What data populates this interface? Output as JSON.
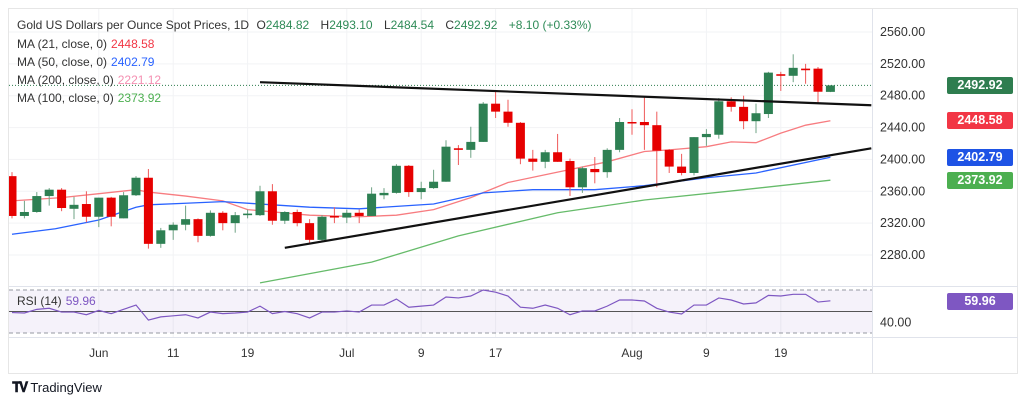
{
  "header": {
    "symbol": "Gold US Dollars per Ounce Spot Prices, 1D",
    "open_label": "O",
    "open": "2484.82",
    "high_label": "H",
    "high": "2493.10",
    "low_label": "L",
    "low": "2484.54",
    "close_label": "C",
    "close": "2492.92",
    "change": "+8.10 (+0.33%)"
  },
  "indicators": [
    {
      "label": "MA (21, close, 0)",
      "value": "2448.58",
      "color": "#f23645"
    },
    {
      "label": "MA (50, close, 0)",
      "value": "2402.79",
      "color": "#2962ff"
    },
    {
      "label": "MA (200, close, 0)",
      "value": "2221.12",
      "color": "#f48fb1"
    },
    {
      "label": "MA (100, close, 0)",
      "value": "2373.92",
      "color": "#4caf50"
    }
  ],
  "rsi": {
    "label": "RSI (14)",
    "value": "59.96",
    "color": "#7e57c2"
  },
  "price_tags": [
    {
      "value": "2492.92",
      "price": 2492.92,
      "color": "#2e7d4f"
    },
    {
      "value": "2448.58",
      "price": 2448.58,
      "color": "#f23645"
    },
    {
      "value": "2402.79",
      "price": 2402.79,
      "color": "#1e53e5"
    },
    {
      "value": "2373.92",
      "price": 2373.92,
      "color": "#4caf50"
    }
  ],
  "branding": {
    "logo_text": "TradingView"
  },
  "chart_data": {
    "type": "candlestick",
    "title": "Gold US Dollars per Ounce Spot Prices, 1D",
    "ylim": [
      2250,
      2585
    ],
    "y_ticks": [
      "2560.00",
      "2520.00",
      "2480.00",
      "2440.00",
      "2400.00",
      "2360.00",
      "2320.00",
      "2280.00"
    ],
    "x_labels": [
      {
        "label": "Jun",
        "index": 7
      },
      {
        "label": "11",
        "index": 13
      },
      {
        "label": "19",
        "index": 19
      },
      {
        "label": "Jul",
        "index": 27
      },
      {
        "label": "9",
        "index": 33
      },
      {
        "label": "17",
        "index": 39
      },
      {
        "label": "Aug",
        "index": 50
      },
      {
        "label": "9",
        "index": 56
      },
      {
        "label": "19",
        "index": 62
      }
    ],
    "candles_ohlc": [
      [
        2379,
        2384,
        2326,
        2329
      ],
      [
        2329,
        2348,
        2326,
        2334
      ],
      [
        2334,
        2359,
        2333,
        2354
      ],
      [
        2354,
        2364,
        2342,
        2362
      ],
      [
        2362,
        2364,
        2335,
        2339
      ],
      [
        2338,
        2353,
        2325,
        2343
      ],
      [
        2344,
        2360,
        2321,
        2328
      ],
      [
        2328,
        2352,
        2315,
        2352
      ],
      [
        2352,
        2353,
        2316,
        2328
      ],
      [
        2326,
        2359,
        2326,
        2355
      ],
      [
        2355,
        2379,
        2354,
        2377
      ],
      [
        2377,
        2388,
        2288,
        2294
      ],
      [
        2294,
        2314,
        2289,
        2311
      ],
      [
        2311,
        2321,
        2299,
        2318
      ],
      [
        2318,
        2342,
        2311,
        2325
      ],
      [
        2325,
        2326,
        2296,
        2304
      ],
      [
        2304,
        2336,
        2303,
        2333
      ],
      [
        2333,
        2335,
        2311,
        2320
      ],
      [
        2320,
        2334,
        2308,
        2330
      ],
      [
        2330,
        2337,
        2326,
        2332
      ],
      [
        2330,
        2367,
        2329,
        2360
      ],
      [
        2360,
        2369,
        2318,
        2323
      ],
      [
        2323,
        2335,
        2319,
        2334
      ],
      [
        2334,
        2337,
        2316,
        2320
      ],
      [
        2320,
        2325,
        2295,
        2299
      ],
      [
        2299,
        2330,
        2296,
        2328
      ],
      [
        2329,
        2340,
        2320,
        2327
      ],
      [
        2327,
        2337,
        2320,
        2333
      ],
      [
        2333,
        2337,
        2320,
        2329
      ],
      [
        2329,
        2365,
        2329,
        2357
      ],
      [
        2355,
        2364,
        2350,
        2358
      ],
      [
        2358,
        2394,
        2357,
        2392
      ],
      [
        2392,
        2393,
        2353,
        2359
      ],
      [
        2359,
        2372,
        2350,
        2364
      ],
      [
        2364,
        2387,
        2363,
        2372
      ],
      [
        2372,
        2424,
        2372,
        2416
      ],
      [
        2414,
        2418,
        2393,
        2412
      ],
      [
        2412,
        2441,
        2402,
        2422
      ],
      [
        2422,
        2472,
        2422,
        2470
      ],
      [
        2470,
        2485,
        2452,
        2460
      ],
      [
        2460,
        2475,
        2441,
        2446
      ],
      [
        2446,
        2447,
        2394,
        2401
      ],
      [
        2401,
        2412,
        2386,
        2397
      ],
      [
        2397,
        2412,
        2389,
        2409
      ],
      [
        2409,
        2432,
        2397,
        2397
      ],
      [
        2398,
        2401,
        2354,
        2365
      ],
      [
        2365,
        2391,
        2358,
        2389
      ],
      [
        2388,
        2403,
        2370,
        2384
      ],
      [
        2384,
        2414,
        2377,
        2412
      ],
      [
        2412,
        2452,
        2409,
        2447
      ],
      [
        2447,
        2463,
        2431,
        2446
      ],
      [
        2447,
        2478,
        2412,
        2443
      ],
      [
        2443,
        2460,
        2365,
        2411
      ],
      [
        2412,
        2413,
        2383,
        2391
      ],
      [
        2391,
        2407,
        2380,
        2383
      ],
      [
        2383,
        2428,
        2380,
        2428
      ],
      [
        2428,
        2438,
        2417,
        2432
      ],
      [
        2431,
        2477,
        2426,
        2473
      ],
      [
        2473,
        2478,
        2460,
        2466
      ],
      [
        2466,
        2480,
        2438,
        2448
      ],
      [
        2448,
        2470,
        2433,
        2458
      ],
      [
        2457,
        2510,
        2452,
        2509
      ],
      [
        2507,
        2510,
        2486,
        2505
      ],
      [
        2505,
        2532,
        2497,
        2515
      ],
      [
        2514,
        2520,
        2495,
        2512
      ],
      [
        2514,
        2516,
        2471,
        2485
      ],
      [
        2484.82,
        2493.1,
        2484.54,
        2492.92
      ]
    ],
    "series": [
      {
        "name": "MA 21",
        "color": "#f77c80",
        "points": [
          [
            0,
            2348
          ],
          [
            4,
            2352
          ],
          [
            7,
            2357
          ],
          [
            10,
            2362
          ],
          [
            11,
            2359
          ],
          [
            14,
            2354
          ],
          [
            17,
            2348
          ],
          [
            19,
            2337
          ],
          [
            24,
            2330
          ],
          [
            28,
            2328
          ],
          [
            31,
            2330
          ],
          [
            34,
            2337
          ],
          [
            37,
            2352
          ],
          [
            40,
            2371
          ],
          [
            44,
            2384
          ],
          [
            48,
            2397
          ],
          [
            51,
            2410
          ],
          [
            53,
            2412
          ],
          [
            56,
            2416
          ],
          [
            58,
            2422
          ],
          [
            60,
            2421
          ],
          [
            62,
            2433
          ],
          [
            64,
            2443
          ],
          [
            66,
            2448.58
          ]
        ]
      },
      {
        "name": "MA 50",
        "color": "#2962ff",
        "points": [
          [
            0,
            2306
          ],
          [
            3.5,
            2313
          ],
          [
            7,
            2324
          ],
          [
            10,
            2340
          ],
          [
            11,
            2343
          ],
          [
            14,
            2345
          ],
          [
            17,
            2347
          ],
          [
            21,
            2343
          ],
          [
            24,
            2340
          ],
          [
            28,
            2338
          ],
          [
            34,
            2344
          ],
          [
            38,
            2358
          ],
          [
            42,
            2362
          ],
          [
            47,
            2362
          ],
          [
            51,
            2367
          ],
          [
            56,
            2377
          ],
          [
            60,
            2383
          ],
          [
            66,
            2402.79
          ]
        ]
      },
      {
        "name": "MA 100",
        "color": "#66bb6a",
        "points": [
          [
            20,
            2245
          ],
          [
            29,
            2271
          ],
          [
            36,
            2304
          ],
          [
            44,
            2333
          ],
          [
            51,
            2349
          ],
          [
            59,
            2362
          ],
          [
            66,
            2373.92
          ]
        ]
      }
    ],
    "trendlines": [
      {
        "name": "upper-trendline",
        "points": [
          [
            20,
            2497
          ],
          [
            69.3,
            2468
          ]
        ]
      },
      {
        "name": "lower-trendline",
        "points": [
          [
            22,
            2289
          ],
          [
            69.3,
            2414
          ]
        ]
      }
    ],
    "rsi_panel": {
      "ylim": [
        30,
        70
      ],
      "levels": [
        70,
        50,
        30
      ],
      "tick_label": "40.00",
      "values": [
        49,
        48.6,
        52,
        53,
        49.5,
        49.5,
        47,
        51,
        48,
        52,
        56,
        42,
        45,
        46,
        47,
        44,
        49.5,
        48,
        48.6,
        49.5,
        55,
        48,
        50,
        48,
        44,
        49.5,
        49.5,
        50.5,
        49.5,
        56,
        56,
        61.6,
        54,
        55,
        56,
        63.5,
        62.6,
        64.4,
        70,
        68,
        64.4,
        54,
        53,
        56,
        53,
        47,
        50.5,
        50.5,
        55,
        60.7,
        60.7,
        59.8,
        53,
        49.5,
        47.7,
        56,
        56,
        62.6,
        60.7,
        57,
        58,
        65,
        64.4,
        66,
        66,
        58.8,
        59.96
      ]
    }
  }
}
